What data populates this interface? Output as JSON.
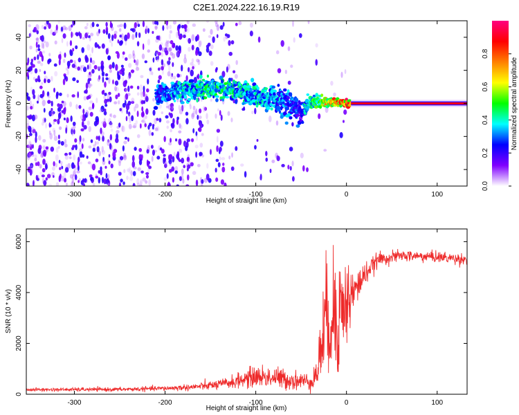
{
  "title": "C2E1.2024.222.16.19.R19",
  "chart_data": [
    {
      "type": "heatmap",
      "xlabel": "Height of straight line (km)",
      "ylabel": "Frequency (Hz)",
      "xlim": [
        -353,
        133
      ],
      "ylim": [
        -50,
        50
      ],
      "xticks": [
        -300,
        -200,
        -100,
        0,
        100
      ],
      "yticks": [
        -40,
        -20,
        0,
        20,
        40
      ],
      "colorbar": {
        "label": "Normalized spectral amplitude",
        "range": [
          0,
          1
        ],
        "ticks": [
          "0.0",
          "0.2",
          "0.4",
          "0.6",
          "0.8"
        ],
        "colors": [
          "#ffffff",
          "#8000ff",
          "#0000ff",
          "#00ffff",
          "#00ff00",
          "#ffff00",
          "#ff8000",
          "#ff0000",
          "#ff0080"
        ]
      },
      "ridge": [
        {
          "x": -210,
          "y": 5,
          "w": 6,
          "a": 0.3
        },
        {
          "x": -180,
          "y": 8,
          "w": 6,
          "a": 0.4
        },
        {
          "x": -150,
          "y": 9,
          "w": 6,
          "a": 0.45
        },
        {
          "x": -130,
          "y": 8,
          "w": 6,
          "a": 0.45
        },
        {
          "x": -110,
          "y": 6,
          "w": 7,
          "a": 0.4
        },
        {
          "x": -90,
          "y": 4,
          "w": 8,
          "a": 0.4
        },
        {
          "x": -70,
          "y": 1,
          "w": 9,
          "a": 0.35
        },
        {
          "x": -55,
          "y": -3,
          "w": 10,
          "a": 0.3
        },
        {
          "x": -50,
          "y": -7,
          "w": 7,
          "a": 0.2
        },
        {
          "x": -45,
          "y": -2,
          "w": 5,
          "a": 0.4
        },
        {
          "x": -35,
          "y": 1,
          "w": 4,
          "a": 0.5
        },
        {
          "x": -20,
          "y": 1,
          "w": 3,
          "a": 0.7
        },
        {
          "x": 0,
          "y": 0,
          "w": 2,
          "a": 0.85
        },
        {
          "x": 133,
          "y": 0,
          "w": 2,
          "a": 0.9
        }
      ]
    },
    {
      "type": "line",
      "xlabel": "Height of straight line (km)",
      "ylabel": "SNR (10 * v/v)",
      "xlim": [
        -353,
        133
      ],
      "ylim": [
        0,
        6500
      ],
      "xticks": [
        -300,
        -200,
        -100,
        0,
        100
      ],
      "yticks": [
        0,
        2000,
        4000,
        6000
      ],
      "color": "#ee2a2a",
      "envelope": [
        {
          "x": -353,
          "mean": 180,
          "noise": 60
        },
        {
          "x": -250,
          "mean": 190,
          "noise": 70
        },
        {
          "x": -200,
          "mean": 230,
          "noise": 90
        },
        {
          "x": -170,
          "mean": 280,
          "noise": 120
        },
        {
          "x": -140,
          "mean": 380,
          "noise": 180
        },
        {
          "x": -120,
          "mean": 520,
          "noise": 260
        },
        {
          "x": -100,
          "mean": 700,
          "noise": 400
        },
        {
          "x": -80,
          "mean": 650,
          "noise": 400
        },
        {
          "x": -60,
          "mean": 550,
          "noise": 350
        },
        {
          "x": -40,
          "mean": 500,
          "noise": 300
        },
        {
          "x": -32,
          "mean": 800,
          "noise": 600
        },
        {
          "x": -28,
          "mean": 2000,
          "noise": 1500
        },
        {
          "x": -22,
          "mean": 3000,
          "noise": 2000
        },
        {
          "x": -10,
          "mean": 3200,
          "noise": 2500
        },
        {
          "x": 0,
          "mean": 3600,
          "noise": 1500
        },
        {
          "x": 10,
          "mean": 4100,
          "noise": 800
        },
        {
          "x": 20,
          "mean": 4700,
          "noise": 400
        },
        {
          "x": 35,
          "mean": 5300,
          "noise": 250
        },
        {
          "x": 60,
          "mean": 5450,
          "noise": 200
        },
        {
          "x": 100,
          "mean": 5400,
          "noise": 200
        },
        {
          "x": 133,
          "mean": 5300,
          "noise": 200
        }
      ]
    }
  ]
}
